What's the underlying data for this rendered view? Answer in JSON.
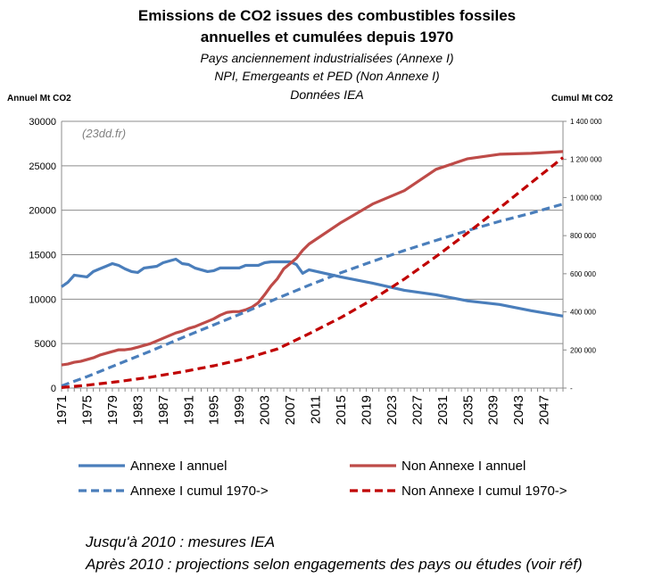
{
  "chart_data": {
    "type": "line",
    "title_line1": "Emissions de CO2 issues des combustibles fossiles",
    "title_line2": "annuelles et cumulées depuis 1970",
    "subtitle_line1": "Pays anciennement  industrialisées (Annexe I)",
    "subtitle_line2": "NPI, Emergeants et PED (Non Annexe I)",
    "subtitle_line3": "Données IEA",
    "ylabel_left": "Annuel Mt CO2",
    "ylabel_right": "Cumul Mt CO2",
    "watermark": "(23dd.fr)",
    "x_ticks": [
      "1971",
      "1975",
      "1979",
      "1983",
      "1987",
      "1991",
      "1995",
      "1999",
      "2003",
      "2007",
      "2011",
      "2015",
      "2019",
      "2023",
      "2027",
      "2031",
      "2035",
      "2039",
      "2043",
      "2047"
    ],
    "xlim": [
      1971,
      2050
    ],
    "ylim_left": [
      0,
      30000
    ],
    "ylim_right": [
      0,
      1400000
    ],
    "y_ticks_left": [
      "0",
      "5000",
      "10000",
      "15000",
      "20000",
      "25000",
      "30000"
    ],
    "y_ticks_right": [
      "-",
      "200 000",
      "400 000",
      "600 000",
      "800 000",
      "1 000 000",
      "1 200 000",
      "1 400 000"
    ],
    "grid": "horizontal",
    "series": [
      {
        "name": "Annexe I annuel",
        "axis": "left",
        "color": "#4a7ebb",
        "style": "solid",
        "x": [
          1971,
          1972,
          1973,
          1974,
          1975,
          1976,
          1977,
          1978,
          1979,
          1980,
          1981,
          1982,
          1983,
          1984,
          1985,
          1986,
          1987,
          1988,
          1989,
          1990,
          1991,
          1992,
          1993,
          1994,
          1995,
          1996,
          1997,
          1998,
          1999,
          2000,
          2001,
          2002,
          2003,
          2004,
          2005,
          2006,
          2007,
          2008,
          2009,
          2010,
          2015,
          2020,
          2025,
          2030,
          2035,
          2040,
          2045,
          2050
        ],
        "y": [
          11400,
          11900,
          12700,
          12600,
          12500,
          13100,
          13400,
          13700,
          14000,
          13800,
          13400,
          13100,
          13000,
          13500,
          13600,
          13700,
          14100,
          14300,
          14500,
          14000,
          13900,
          13500,
          13300,
          13100,
          13200,
          13500,
          13500,
          13500,
          13500,
          13800,
          13800,
          13800,
          14100,
          14200,
          14200,
          14200,
          14200,
          13900,
          12900,
          13300,
          12500,
          11800,
          11000,
          10500,
          9800,
          9400,
          8700,
          8100
        ]
      },
      {
        "name": "Non Annexe I annuel",
        "axis": "left",
        "color": "#be4b48",
        "style": "solid",
        "x": [
          1971,
          1972,
          1973,
          1974,
          1975,
          1976,
          1977,
          1978,
          1979,
          1980,
          1981,
          1982,
          1983,
          1984,
          1985,
          1986,
          1987,
          1988,
          1989,
          1990,
          1991,
          1992,
          1993,
          1994,
          1995,
          1996,
          1997,
          1998,
          1999,
          2000,
          2001,
          2002,
          2003,
          2004,
          2005,
          2006,
          2007,
          2008,
          2009,
          2010,
          2015,
          2020,
          2025,
          2030,
          2035,
          2040,
          2045,
          2050
        ],
        "y": [
          2600,
          2700,
          2900,
          3000,
          3200,
          3400,
          3700,
          3900,
          4100,
          4300,
          4300,
          4400,
          4600,
          4800,
          5000,
          5300,
          5600,
          5900,
          6200,
          6400,
          6700,
          6900,
          7200,
          7500,
          7800,
          8200,
          8500,
          8600,
          8600,
          8800,
          9100,
          9600,
          10500,
          11500,
          12300,
          13400,
          14000,
          14600,
          15500,
          16200,
          18600,
          20700,
          22200,
          24600,
          25800,
          26300,
          26400,
          26600
        ]
      },
      {
        "name": "Annexe I cumul 1970->",
        "axis": "right",
        "color": "#4a7ebb",
        "style": "dashed",
        "x": [
          1971,
          1975,
          1980,
          1985,
          1990,
          1995,
          2000,
          2005,
          2010,
          2015,
          2020,
          2025,
          2030,
          2035,
          2040,
          2045,
          2050
        ],
        "y": [
          11400,
          60000,
          127000,
          194000,
          264000,
          332000,
          400000,
          471000,
          540000,
          605000,
          665000,
          722000,
          775000,
          827000,
          875000,
          918000,
          966000
        ]
      },
      {
        "name": "Non Annexe I cumul 1970->",
        "axis": "right",
        "color": "#c00000",
        "style": "dashed",
        "x": [
          1971,
          1975,
          1980,
          1985,
          1990,
          1995,
          2000,
          2005,
          2010,
          2015,
          2020,
          2025,
          2030,
          2035,
          2040,
          2045,
          2050
        ],
        "y": [
          2600,
          15000,
          34000,
          57000,
          85000,
          117000,
          155000,
          205000,
          285000,
          370000,
          465000,
          572000,
          690000,
          815000,
          945000,
          1078000,
          1210000
        ]
      }
    ]
  },
  "notes": {
    "line1": "Jusqu'à 2010 : mesures IEA",
    "line2": "Après 2010 : projections selon engagements des pays ou études (voir réf)"
  }
}
